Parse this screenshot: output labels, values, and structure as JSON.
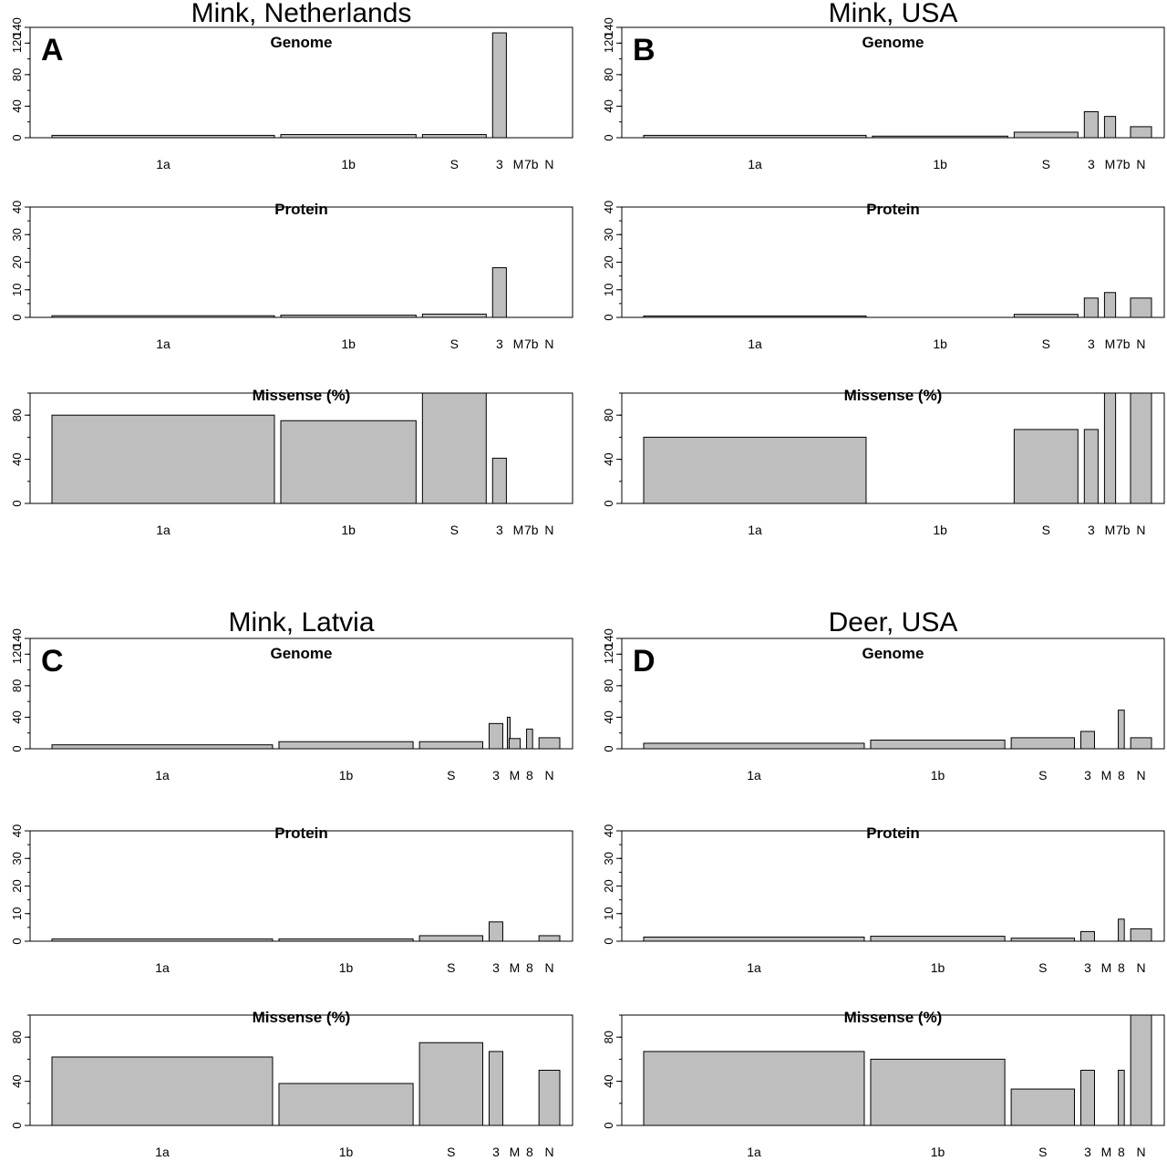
{
  "style": {
    "bar_fill": "#bebebe",
    "bar_stroke": "#000000",
    "frame": "#000000"
  },
  "chart_data": [
    {
      "type": "bar",
      "letter": "A",
      "title": "Mink, Netherlands",
      "categories": [
        "1a",
        "1b",
        "S",
        "3",
        "M",
        "7b",
        "N"
      ],
      "rel_widths": [
        4440,
        2700,
        1273,
        275,
        222,
        43,
        419
      ],
      "subplots": [
        {
          "title": "Genome",
          "ylim": [
            0,
            140
          ],
          "yticks": [
            0,
            40,
            80,
            120,
            140
          ],
          "values": [
            3,
            4,
            4,
            133,
            0,
            0,
            0
          ]
        },
        {
          "title": "Protein",
          "ylim": [
            0,
            40
          ],
          "yticks": [
            0,
            10,
            20,
            30,
            40
          ],
          "values": [
            0.6,
            0.8,
            1.2,
            18,
            0,
            0,
            0
          ]
        },
        {
          "title": "Missense (%)",
          "ylim": [
            0,
            100
          ],
          "yticks": [
            0,
            40,
            80
          ],
          "values": [
            80,
            75,
            100,
            41,
            0,
            0,
            0
          ]
        }
      ]
    },
    {
      "type": "bar",
      "letter": "B",
      "title": "Mink, USA",
      "categories": [
        "1a",
        "1b",
        "S",
        "3",
        "M",
        "7b",
        "N"
      ],
      "rel_widths": [
        4440,
        2700,
        1273,
        275,
        222,
        43,
        419
      ],
      "subplots": [
        {
          "title": "Genome",
          "ylim": [
            0,
            140
          ],
          "yticks": [
            0,
            40,
            80,
            120,
            140
          ],
          "values": [
            3,
            2,
            7,
            33,
            27,
            0,
            14
          ]
        },
        {
          "title": "Protein",
          "ylim": [
            0,
            40
          ],
          "yticks": [
            0,
            10,
            20,
            30,
            40
          ],
          "values": [
            0.5,
            0,
            1.1,
            7,
            9,
            0,
            7
          ]
        },
        {
          "title": "Missense (%)",
          "ylim": [
            0,
            100
          ],
          "yticks": [
            0,
            40,
            80
          ],
          "values": [
            60,
            0,
            67,
            67,
            100,
            0,
            100
          ]
        }
      ]
    },
    {
      "type": "bar",
      "letter": "C",
      "title": "Mink, Latvia",
      "categories": [
        "1a",
        "1b",
        "S",
        "3",
        "M",
        "8",
        "N"
      ],
      "rel_widths": [
        4440,
        2700,
        1273,
        275,
        222,
        121,
        419
      ],
      "subplots": [
        {
          "title": "Genome",
          "ylim": [
            0,
            140
          ],
          "yticks": [
            0,
            40,
            80,
            120,
            140
          ],
          "values": [
            5,
            9,
            9,
            32,
            13,
            25,
            14
          ],
          "extra_bar": {
            "after": 3,
            "value": 40
          }
        },
        {
          "title": "Protein",
          "ylim": [
            0,
            40
          ],
          "yticks": [
            0,
            10,
            20,
            30,
            40
          ],
          "values": [
            0.8,
            0.8,
            2,
            7,
            0,
            0,
            2
          ]
        },
        {
          "title": "Missense (%)",
          "ylim": [
            0,
            100
          ],
          "yticks": [
            0,
            40,
            80
          ],
          "values": [
            62,
            38,
            75,
            67,
            0,
            0,
            50
          ]
        }
      ]
    },
    {
      "type": "bar",
      "letter": "D",
      "title": "Deer, USA",
      "categories": [
        "1a",
        "1b",
        "S",
        "3",
        "M",
        "8",
        "N"
      ],
      "rel_widths": [
        4440,
        2700,
        1273,
        275,
        222,
        121,
        419
      ],
      "subplots": [
        {
          "title": "Genome",
          "ylim": [
            0,
            140
          ],
          "yticks": [
            0,
            40,
            80,
            120,
            140
          ],
          "values": [
            7,
            11,
            14,
            22,
            0,
            49,
            14
          ]
        },
        {
          "title": "Protein",
          "ylim": [
            0,
            40
          ],
          "yticks": [
            0,
            10,
            20,
            30,
            40
          ],
          "values": [
            1.5,
            1.8,
            1.1,
            3.5,
            0,
            8,
            4.5
          ]
        },
        {
          "title": "Missense (%)",
          "ylim": [
            0,
            100
          ],
          "yticks": [
            0,
            40,
            80
          ],
          "values": [
            67,
            60,
            33,
            50,
            0,
            50,
            100
          ]
        }
      ]
    }
  ]
}
